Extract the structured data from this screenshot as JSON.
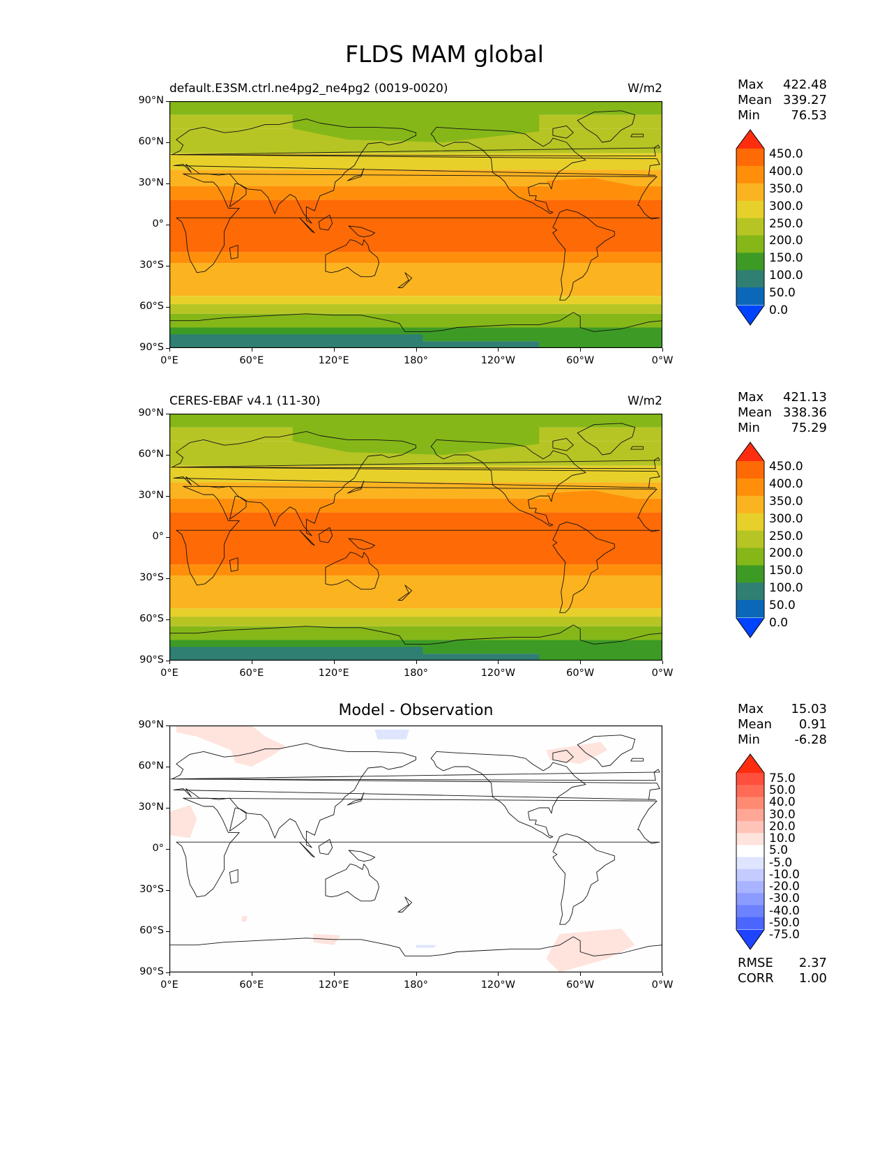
{
  "title": "FLDS MAM global",
  "lat_ticks": [
    "90°N",
    "60°N",
    "30°N",
    "0°",
    "30°S",
    "60°S",
    "90°S"
  ],
  "lon_ticks": [
    "0°E",
    "60°E",
    "120°E",
    "180°",
    "120°W",
    "60°W",
    "0°W"
  ],
  "panels": [
    {
      "left_title": "default.E3SM.ctrl.ne4pg2_ne4pg2 (0019-0020)",
      "center_title": "",
      "units": "W/m2",
      "stats": [
        [
          "Max",
          "422.48"
        ],
        [
          "Mean",
          "339.27"
        ],
        [
          "Min",
          "76.53"
        ]
      ],
      "colorbar": {
        "levels": [
          "450.0",
          "400.0",
          "350.0",
          "300.0",
          "250.0",
          "200.0",
          "150.0",
          "100.0",
          "50.0",
          "0.0"
        ],
        "colors": [
          "#ff2d10",
          "#fe6a06",
          "#ff8f0b",
          "#fbb320",
          "#e8d02a",
          "#b6c524",
          "#85b719",
          "#3d9b25",
          "#2f7f72",
          "#0b68b9",
          "#0044ff"
        ]
      }
    },
    {
      "left_title": "CERES-EBAF v4.1 (11-30)",
      "center_title": "",
      "units": "W/m2",
      "stats": [
        [
          "Max",
          "421.13"
        ],
        [
          "Mean",
          "338.36"
        ],
        [
          "Min",
          "75.29"
        ]
      ],
      "colorbar": {
        "levels": [
          "450.0",
          "400.0",
          "350.0",
          "300.0",
          "250.0",
          "200.0",
          "150.0",
          "100.0",
          "50.0",
          "0.0"
        ],
        "colors": [
          "#ff2d10",
          "#fe6a06",
          "#ff8f0b",
          "#fbb320",
          "#e8d02a",
          "#b6c524",
          "#85b719",
          "#3d9b25",
          "#2f7f72",
          "#0b68b9",
          "#0044ff"
        ]
      }
    },
    {
      "left_title": "",
      "center_title": "Model - Observation",
      "units": "",
      "stats": [
        [
          "Max",
          "15.03"
        ],
        [
          "Mean",
          "0.91"
        ],
        [
          "Min",
          "-6.28"
        ]
      ],
      "colorbar": {
        "levels": [
          "75.0",
          "50.0",
          "40.0",
          "30.0",
          "20.0",
          "10.0",
          "5.0",
          "-5.0",
          "-10.0",
          "-20.0",
          "-30.0",
          "-40.0",
          "-50.0",
          "-75.0"
        ],
        "colors": [
          "#ff2d10",
          "#ff4f3d",
          "#ff6b55",
          "#ff8a72",
          "#ffa696",
          "#ffc3b8",
          "#ffe3dd",
          "#ffffff",
          "#dfe4ff",
          "#c4ccff",
          "#a8b4ff",
          "#8b9bff",
          "#6c82ff",
          "#4a66ff",
          "#1f44ff"
        ]
      },
      "footer": [
        [
          "RMSE",
          "2.37"
        ],
        [
          "CORR",
          "1.00"
        ]
      ]
    }
  ]
}
